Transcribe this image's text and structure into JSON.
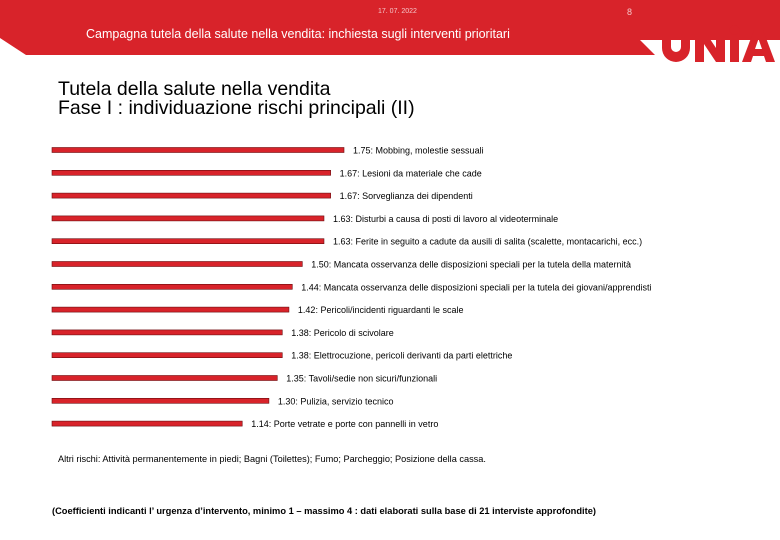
{
  "header": {
    "date": "17. 07. 2022",
    "page_number": "8",
    "title": "Campagna tutela della salute nella vendita: inchiesta sugli interventi prioritari",
    "logo_text": "UNIA"
  },
  "slide": {
    "title_line1": "Tutela della salute nella vendita",
    "title_line2": "Fase I : individuazione rischi principali (II)",
    "other_risks": "Altri rischi: Attività permanentemente in piedi; Bagni (Toilettes); Fumo; Parcheggio; Posizione della cassa.",
    "footnote": "(Coefficienti indicanti l’ urgenza d’intervento, minimo 1 – massimo 4 : dati elaborati sulla base di 21 interviste approfondite)"
  },
  "colors": {
    "brand_red": "#d8232a",
    "bar_fill": "#d8232a",
    "bar_stroke": "#6b0b0e"
  },
  "chart_data": {
    "type": "bar",
    "orientation": "horizontal",
    "xlim": [
      0,
      1.75
    ],
    "grid": false,
    "legend": "none",
    "categories": [
      "1.75: Mobbing, molestie sessuali",
      "1.67: Lesioni da materiale che cade",
      "1.67: Sorveglianza dei dipendenti",
      "1.63: Disturbi a causa di posti di lavoro al videoterminale",
      "1.63: Ferite in seguito a cadute da ausili di salita (scalette, montacarichi, ecc.)",
      "1.50: Mancata osservanza delle disposizioni speciali per la tutela della maternità",
      "1.44: Mancata osservanza delle disposizioni speciali per la tutela dei giovani/apprendisti",
      "1.42: Pericoli/incidenti riguardanti le scale",
      "1.38: Pericolo di scivolare",
      "1.38: Elettrocuzione, pericoli derivanti da parti elettriche",
      "1.35: Tavoli/sedie non sicuri/funzionali",
      "1.30: Pulizia, servizio tecnico",
      "1.14: Porte vetrate e porte con pannelli in vetro"
    ],
    "values": [
      1.75,
      1.67,
      1.67,
      1.63,
      1.63,
      1.5,
      1.44,
      1.42,
      1.38,
      1.38,
      1.35,
      1.3,
      1.14
    ]
  }
}
